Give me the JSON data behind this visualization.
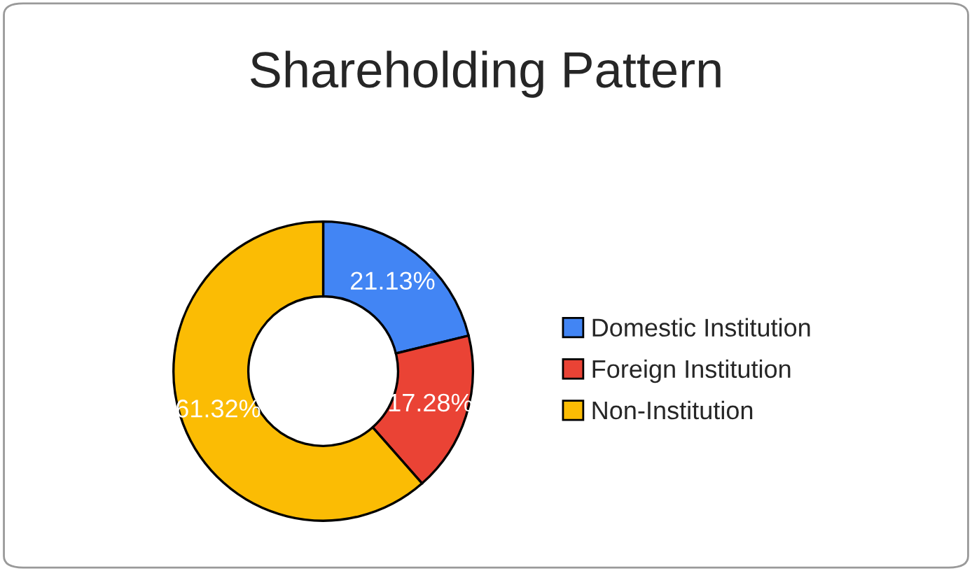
{
  "chart_data": {
    "type": "donut",
    "title": "Shareholding Pattern",
    "categories": [
      "Domestic Institution",
      "Foreign Institution",
      "Non-Institution"
    ],
    "values": [
      21.13,
      17.28,
      61.32
    ],
    "value_labels": [
      "21.13%",
      "17.28%",
      "61.32%"
    ],
    "colors": [
      "#4285f4",
      "#ea4335",
      "#fbbc04"
    ],
    "legend": "right"
  }
}
